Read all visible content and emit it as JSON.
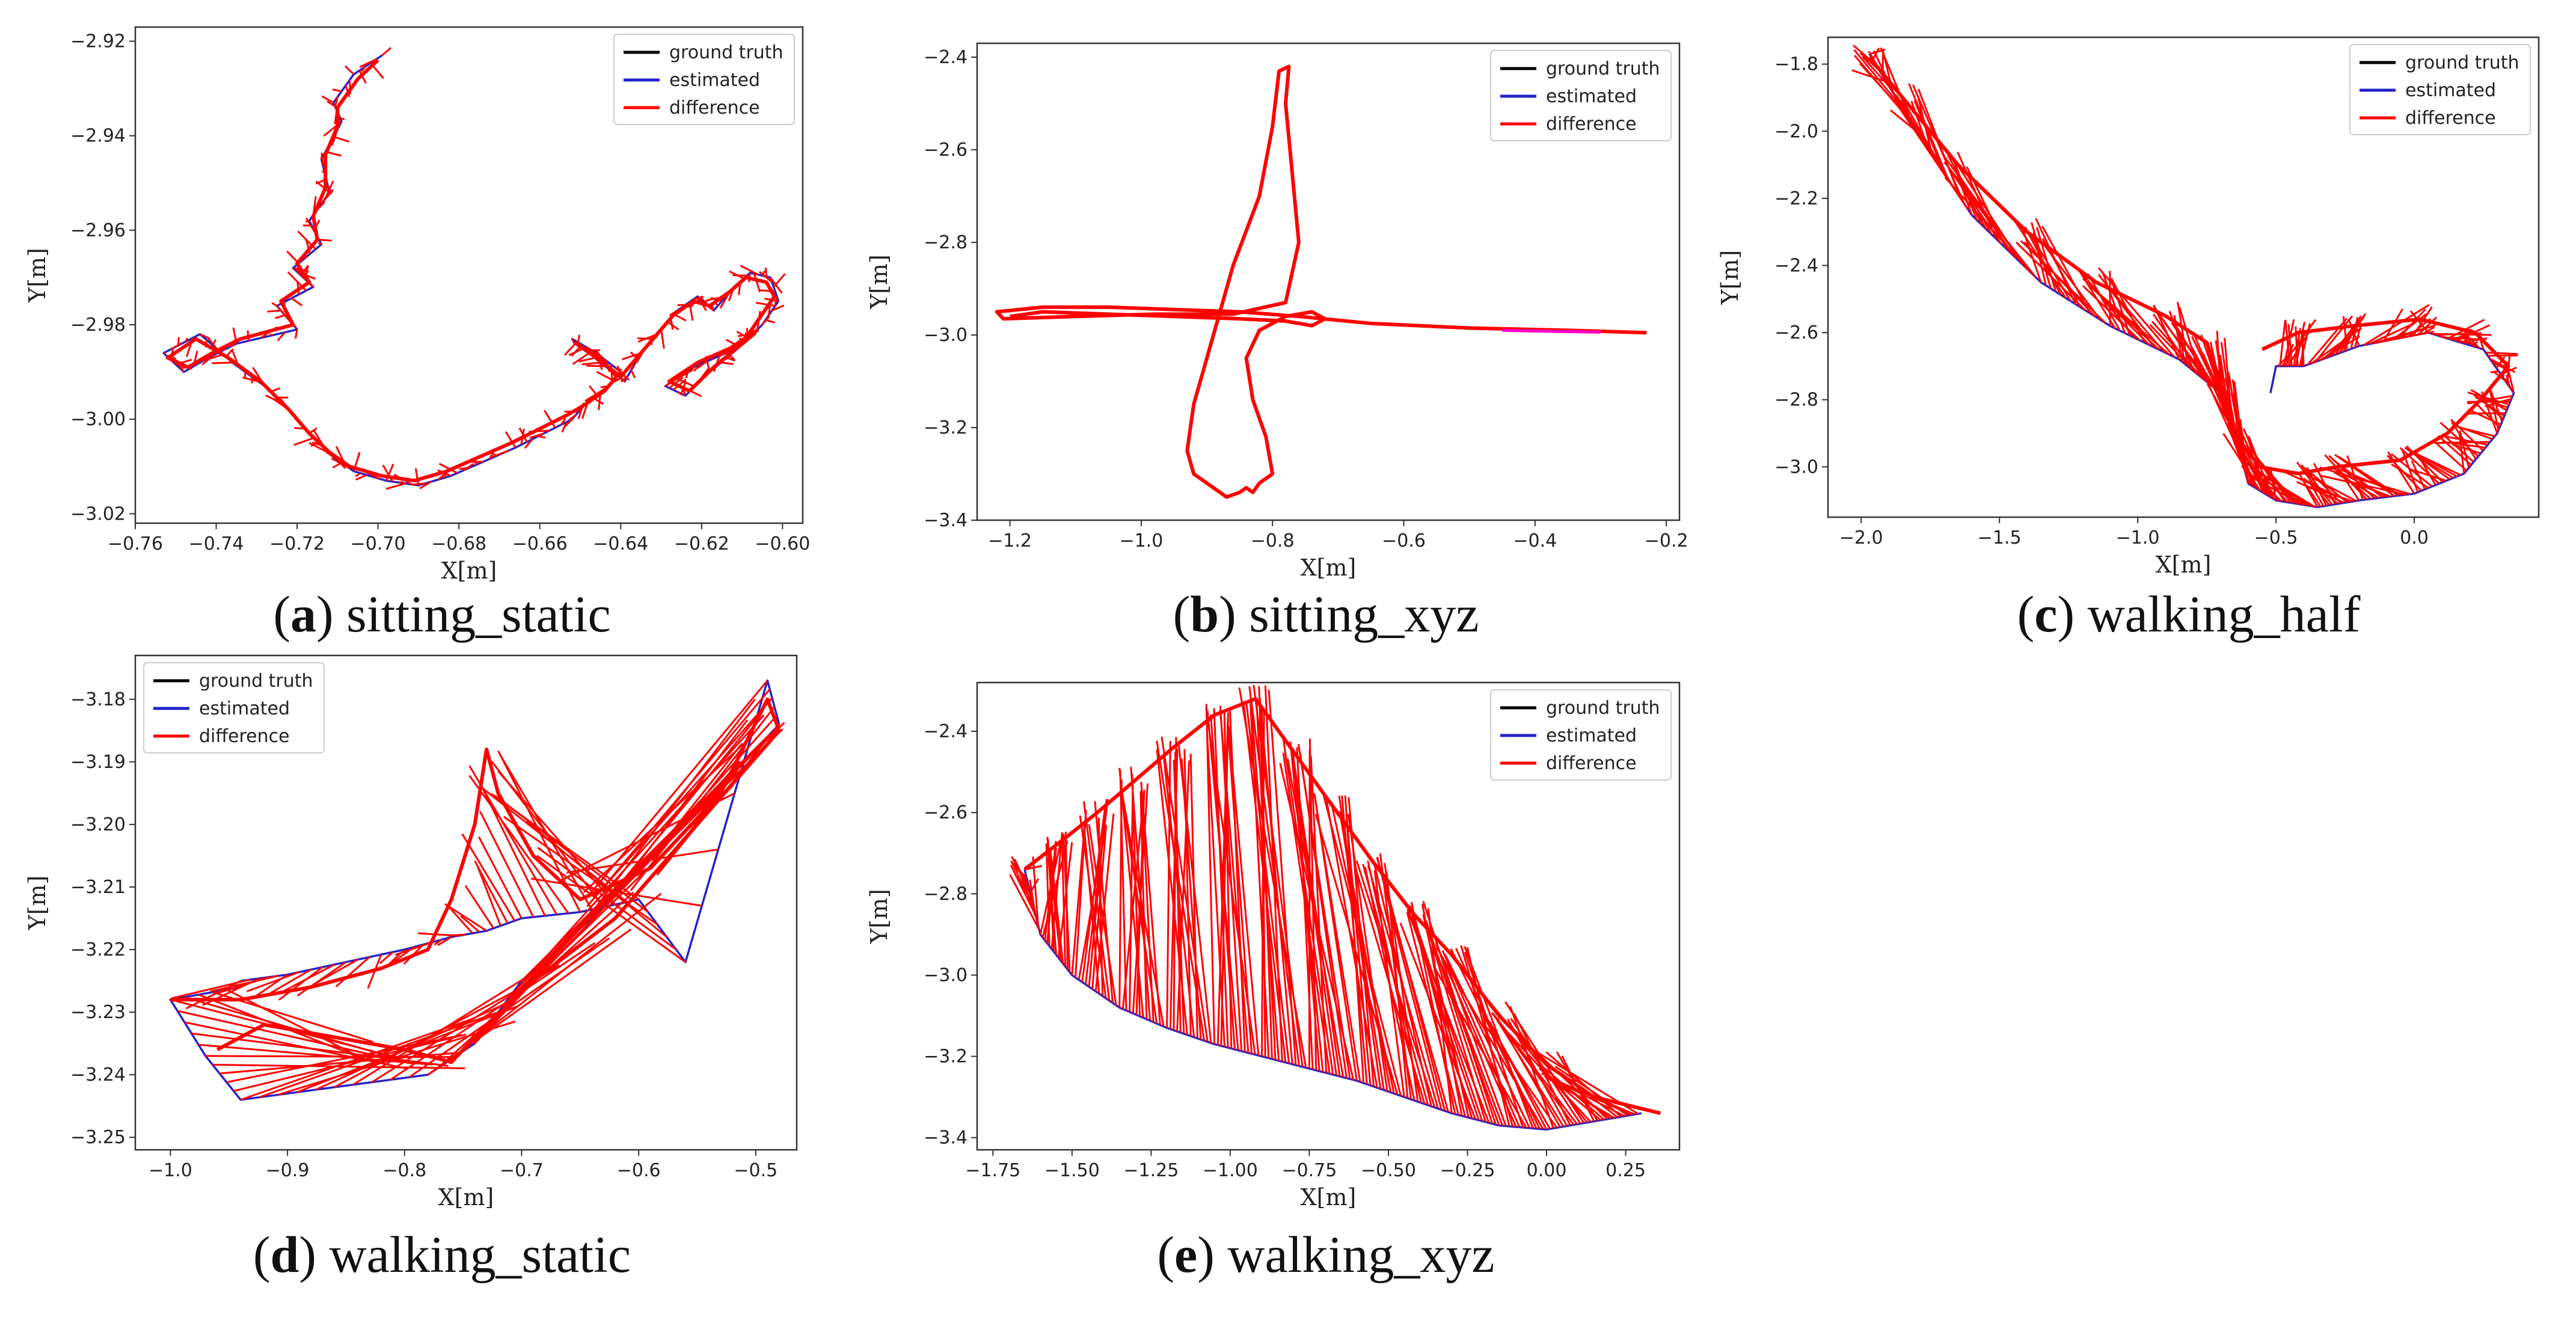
{
  "colors": {
    "ground_truth": "#000000",
    "estimated": "#2323c8",
    "difference": "#ff0000",
    "highlight": "#ff00cc"
  },
  "chart_data": [
    {
      "id": "a",
      "type": "line",
      "caption_label": "a",
      "caption_text": "sitting_static",
      "xlabel": "X[m]",
      "ylabel": "Y[m]",
      "xlim": [
        -0.76,
        -0.595
      ],
      "ylim": [
        -3.022,
        -2.917
      ],
      "xticks": [
        -0.76,
        -0.74,
        -0.72,
        -0.7,
        -0.68,
        -0.66,
        -0.64,
        -0.62,
        -0.6
      ],
      "xtick_labels": [
        "−0.76",
        "−0.74",
        "−0.72",
        "−0.70",
        "−0.68",
        "−0.66",
        "−0.64",
        "−0.62",
        "−0.60"
      ],
      "yticks": [
        -3.02,
        -3.0,
        -2.98,
        -2.96,
        -2.94,
        -2.92
      ],
      "ytick_labels": [
        "−3.02",
        "−3.00",
        "−2.98",
        "−2.96",
        "−2.94",
        "−2.92"
      ],
      "legend": [
        "ground truth",
        "estimated",
        "difference"
      ],
      "legend_position": "top-right",
      "series": [
        {
          "name": "estimated",
          "x": [
            -0.699,
            -0.706,
            -0.711,
            -0.709,
            -0.714,
            -0.712,
            -0.717,
            -0.714,
            -0.721,
            -0.716,
            -0.725,
            -0.72,
            -0.735,
            -0.742,
            -0.748,
            -0.753,
            -0.744,
            -0.736,
            -0.728,
            -0.721,
            -0.716,
            -0.711,
            -0.706,
            -0.698,
            -0.69,
            -0.682,
            -0.674,
            -0.666,
            -0.659,
            -0.652,
            -0.648,
            -0.643,
            -0.64,
            -0.646,
            -0.652,
            -0.645,
            -0.639,
            -0.635,
            -0.63,
            -0.626,
            -0.621,
            -0.617,
            -0.612,
            -0.608,
            -0.603,
            -0.601,
            -0.605,
            -0.611,
            -0.618,
            -0.624,
            -0.629,
            -0.622,
            -0.614,
            -0.607
          ],
          "y": [
            -2.923,
            -2.927,
            -2.933,
            -2.937,
            -2.945,
            -2.952,
            -2.958,
            -2.963,
            -2.968,
            -2.972,
            -2.976,
            -2.981,
            -2.984,
            -2.987,
            -2.99,
            -2.986,
            -2.982,
            -2.988,
            -2.993,
            -2.999,
            -3.004,
            -3.008,
            -3.011,
            -3.013,
            -3.014,
            -3.012,
            -3.009,
            -3.006,
            -3.003,
            -3.0,
            -2.996,
            -2.993,
            -2.99,
            -2.986,
            -2.983,
            -2.988,
            -2.992,
            -2.986,
            -2.981,
            -2.977,
            -2.974,
            -2.977,
            -2.972,
            -2.969,
            -2.97,
            -2.975,
            -2.98,
            -2.985,
            -2.99,
            -2.995,
            -2.993,
            -2.989,
            -2.986,
            -2.982
          ]
        },
        {
          "name": "difference",
          "x": [
            -0.7,
            -0.705,
            -0.71,
            -0.71,
            -0.713,
            -0.713,
            -0.716,
            -0.715,
            -0.72,
            -0.717,
            -0.724,
            -0.721,
            -0.734,
            -0.741,
            -0.747,
            -0.752,
            -0.745,
            -0.737,
            -0.729,
            -0.722,
            -0.717,
            -0.712,
            -0.707,
            -0.699,
            -0.691,
            -0.683,
            -0.675,
            -0.667,
            -0.66,
            -0.653,
            -0.649,
            -0.644,
            -0.641,
            -0.645,
            -0.651,
            -0.646,
            -0.64,
            -0.636,
            -0.631,
            -0.627,
            -0.622,
            -0.618,
            -0.613,
            -0.609,
            -0.604,
            -0.602,
            -0.606,
            -0.61,
            -0.617,
            -0.623,
            -0.628,
            -0.621,
            -0.613,
            -0.606
          ],
          "y": [
            -2.924,
            -2.928,
            -2.934,
            -2.938,
            -2.944,
            -2.951,
            -2.957,
            -2.962,
            -2.967,
            -2.971,
            -2.975,
            -2.98,
            -2.983,
            -2.986,
            -2.989,
            -2.987,
            -2.983,
            -2.987,
            -2.992,
            -2.998,
            -3.003,
            -3.007,
            -3.01,
            -3.012,
            -3.013,
            -3.011,
            -3.008,
            -3.005,
            -3.002,
            -2.999,
            -2.997,
            -2.994,
            -2.991,
            -2.987,
            -2.984,
            -2.987,
            -2.991,
            -2.987,
            -2.982,
            -2.978,
            -2.975,
            -2.976,
            -2.973,
            -2.97,
            -2.971,
            -2.974,
            -2.979,
            -2.984,
            -2.989,
            -2.994,
            -2.992,
            -2.988,
            -2.985,
            -2.981
          ]
        }
      ]
    },
    {
      "id": "b",
      "type": "line",
      "caption_label": "b",
      "caption_text": "sitting_xyz",
      "xlabel": "X[m]",
      "ylabel": "Y[m]",
      "xlim": [
        -1.25,
        -0.18
      ],
      "ylim": [
        -3.4,
        -2.37
      ],
      "xticks": [
        -1.2,
        -1.0,
        -0.8,
        -0.6,
        -0.4,
        -0.2
      ],
      "xtick_labels": [
        "−1.2",
        "−1.0",
        "−0.8",
        "−0.6",
        "−0.4",
        "−0.2"
      ],
      "yticks": [
        -3.4,
        -3.2,
        -3.0,
        -2.8,
        -2.6,
        -2.4
      ],
      "ytick_labels": [
        "−3.4",
        "−3.2",
        "−3.0",
        "−2.8",
        "−2.6",
        "−2.4"
      ],
      "legend": [
        "ground truth",
        "estimated",
        "difference"
      ],
      "legend_position": "top-right",
      "series": [
        {
          "name": "difference",
          "x": [
            -0.23,
            -0.35,
            -0.5,
            -0.65,
            -0.76,
            -0.85,
            -0.95,
            -1.05,
            -1.15,
            -1.22,
            -1.21,
            -1.1,
            -0.98,
            -0.86,
            -0.78,
            -0.76,
            -0.77,
            -0.78,
            -0.775,
            -0.79,
            -0.8,
            -0.82,
            -0.86,
            -0.88,
            -0.9,
            -0.92,
            -0.93,
            -0.92,
            -0.89,
            -0.87,
            -0.85,
            -0.84,
            -0.83,
            -0.82,
            -0.8,
            -0.81,
            -0.83,
            -0.84,
            -0.82,
            -0.78,
            -0.74,
            -0.72,
            -0.74,
            -0.78,
            -0.85,
            -0.95,
            -1.05,
            -1.15,
            -1.2
          ],
          "y": [
            -2.995,
            -2.99,
            -2.985,
            -2.975,
            -2.96,
            -2.95,
            -2.945,
            -2.94,
            -2.94,
            -2.95,
            -2.965,
            -2.96,
            -2.955,
            -2.955,
            -2.93,
            -2.8,
            -2.65,
            -2.5,
            -2.42,
            -2.43,
            -2.55,
            -2.7,
            -2.85,
            -2.95,
            -3.05,
            -3.15,
            -3.25,
            -3.3,
            -3.33,
            -3.35,
            -3.34,
            -3.33,
            -3.34,
            -3.32,
            -3.3,
            -3.22,
            -3.14,
            -3.05,
            -2.99,
            -2.96,
            -2.95,
            -2.965,
            -2.98,
            -2.97,
            -2.965,
            -2.96,
            -2.955,
            -2.95,
            -2.96
          ]
        },
        {
          "name": "highlight",
          "x": [
            -0.45,
            -0.38,
            -0.3
          ],
          "y": [
            -2.99,
            -2.992,
            -2.994
          ]
        }
      ]
    },
    {
      "id": "c",
      "type": "line",
      "caption_label": "c",
      "caption_text": "walking_half",
      "xlabel": "X[m]",
      "ylabel": "Y[m]",
      "xlim": [
        -2.12,
        0.45
      ],
      "ylim": [
        -3.15,
        -1.72
      ],
      "xticks": [
        -2.0,
        -1.5,
        -1.0,
        -0.5,
        0.0
      ],
      "xtick_labels": [
        "−2.0",
        "−1.5",
        "−1.0",
        "−0.5",
        "0.0"
      ],
      "yticks": [
        -3.0,
        -2.8,
        -2.6,
        -2.4,
        -2.2,
        -2.0,
        -1.8
      ],
      "ytick_labels": [
        "−3.0",
        "−2.8",
        "−2.6",
        "−2.4",
        "−2.2",
        "−2.0",
        "−1.8"
      ],
      "legend": [
        "ground truth",
        "estimated",
        "difference"
      ],
      "legend_position": "top-right",
      "series": [
        {
          "name": "estimated",
          "x": [
            -1.97,
            -1.8,
            -1.6,
            -1.35,
            -1.1,
            -0.85,
            -0.7,
            -0.65,
            -0.6,
            -0.5,
            -0.35,
            -0.2,
            0.0,
            0.18,
            0.3,
            0.36,
            0.25,
            0.05,
            -0.2,
            -0.4,
            -0.5,
            -0.52
          ],
          "y": [
            -1.77,
            -2.0,
            -2.25,
            -2.45,
            -2.58,
            -2.68,
            -2.78,
            -2.9,
            -3.05,
            -3.1,
            -3.12,
            -3.1,
            -3.08,
            -3.02,
            -2.9,
            -2.78,
            -2.65,
            -2.6,
            -2.64,
            -2.7,
            -2.7,
            -2.78
          ]
        },
        {
          "name": "difference",
          "x": [
            -1.97,
            -1.85,
            -1.65,
            -1.4,
            -1.15,
            -0.9,
            -0.75,
            -0.7,
            -0.65,
            -0.56,
            -0.42,
            -0.28,
            -0.05,
            0.12,
            0.24,
            0.34,
            0.22,
            0.02,
            -0.22,
            -0.42,
            -0.55
          ],
          "y": [
            -1.78,
            -1.9,
            -2.1,
            -2.3,
            -2.45,
            -2.55,
            -2.63,
            -2.75,
            -2.9,
            -3.0,
            -3.02,
            -3.0,
            -2.98,
            -2.9,
            -2.8,
            -2.7,
            -2.6,
            -2.56,
            -2.58,
            -2.6,
            -2.65
          ]
        }
      ]
    },
    {
      "id": "d",
      "type": "line",
      "caption_label": "d",
      "caption_text": "walking_static",
      "xlabel": "X[m]",
      "ylabel": "Y[m]",
      "xlim": [
        -1.03,
        -0.465
      ],
      "ylim": [
        -3.252,
        -3.173
      ],
      "xticks": [
        -1.0,
        -0.9,
        -0.8,
        -0.7,
        -0.6,
        -0.5
      ],
      "xtick_labels": [
        "−1.0",
        "−0.9",
        "−0.8",
        "−0.7",
        "−0.6",
        "−0.5"
      ],
      "yticks": [
        -3.25,
        -3.24,
        -3.23,
        -3.22,
        -3.21,
        -3.2,
        -3.19,
        -3.18
      ],
      "ytick_labels": [
        "−3.25",
        "−3.24",
        "−3.23",
        "−3.22",
        "−3.21",
        "−3.20",
        "−3.19",
        "−3.18"
      ],
      "legend": [
        "ground truth",
        "estimated",
        "difference"
      ],
      "legend_position": "top-left",
      "series": [
        {
          "name": "estimated",
          "x": [
            -0.94,
            -0.9,
            -0.85,
            -0.8,
            -0.76,
            -0.73,
            -0.7,
            -0.65,
            -0.6,
            -0.56,
            -0.49,
            -0.48,
            -0.56,
            -0.64,
            -0.7,
            -0.74,
            -0.78,
            -0.86,
            -0.94,
            -0.97,
            -1.0,
            -0.94
          ],
          "y": [
            -3.225,
            -3.224,
            -3.222,
            -3.22,
            -3.218,
            -3.217,
            -3.215,
            -3.214,
            -3.212,
            -3.222,
            -3.177,
            -3.184,
            -3.2,
            -3.215,
            -3.225,
            -3.235,
            -3.24,
            -3.242,
            -3.244,
            -3.237,
            -3.228,
            -3.226
          ]
        },
        {
          "name": "difference",
          "x": [
            -1.0,
            -0.94,
            -0.88,
            -0.82,
            -0.78,
            -0.76,
            -0.74,
            -0.73,
            -0.72,
            -0.69,
            -0.65,
            -0.59,
            -0.53,
            -0.49,
            -0.48,
            -0.55,
            -0.62,
            -0.69,
            -0.73,
            -0.76,
            -0.8,
            -0.86,
            -0.92,
            -0.96
          ],
          "y": [
            -3.228,
            -3.228,
            -3.226,
            -3.223,
            -3.22,
            -3.212,
            -3.2,
            -3.188,
            -3.195,
            -3.205,
            -3.212,
            -3.207,
            -3.195,
            -3.18,
            -3.185,
            -3.2,
            -3.215,
            -3.225,
            -3.232,
            -3.238,
            -3.236,
            -3.234,
            -3.232,
            -3.236
          ]
        }
      ]
    },
    {
      "id": "e",
      "type": "line",
      "caption_label": "e",
      "caption_text": "walking_xyz",
      "xlabel": "X[m]",
      "ylabel": "Y[m]",
      "xlim": [
        -1.8,
        0.42
      ],
      "ylim": [
        -3.43,
        -2.28
      ],
      "xticks": [
        -1.75,
        -1.5,
        -1.25,
        -1.0,
        -0.75,
        -0.5,
        -0.25,
        0.0,
        0.25
      ],
      "xtick_labels": [
        "−1.75",
        "−1.50",
        "−1.25",
        "−1.00",
        "−0.75",
        "−0.50",
        "−0.25",
        "0.00",
        "0.25"
      ],
      "yticks": [
        -3.4,
        -3.2,
        -3.0,
        -2.8,
        -2.6,
        -2.4
      ],
      "ytick_labels": [
        "−3.4",
        "−3.2",
        "−3.0",
        "−2.8",
        "−2.6",
        "−2.4"
      ],
      "legend": [
        "ground truth",
        "estimated",
        "difference"
      ],
      "legend_position": "top-right",
      "series": [
        {
          "name": "estimated",
          "x": [
            -1.65,
            -1.6,
            -1.5,
            -1.35,
            -1.2,
            -1.05,
            -0.9,
            -0.75,
            -0.6,
            -0.45,
            -0.3,
            -0.15,
            0.0,
            0.15,
            0.3
          ],
          "y": [
            -2.74,
            -2.9,
            -3.0,
            -3.08,
            -3.13,
            -3.17,
            -3.2,
            -3.23,
            -3.26,
            -3.3,
            -3.34,
            -3.37,
            -3.38,
            -3.36,
            -3.34
          ]
        },
        {
          "name": "difference",
          "x": [
            -1.65,
            -1.55,
            -1.42,
            -1.3,
            -1.18,
            -1.05,
            -0.92,
            -0.8,
            -0.68,
            -0.55,
            -0.42,
            -0.3,
            -0.15,
            0.0,
            0.15,
            0.36
          ],
          "y": [
            -2.74,
            -2.68,
            -2.6,
            -2.52,
            -2.44,
            -2.36,
            -2.32,
            -2.45,
            -2.58,
            -2.72,
            -2.85,
            -2.95,
            -3.1,
            -3.22,
            -3.3,
            -3.34
          ]
        }
      ]
    }
  ]
}
